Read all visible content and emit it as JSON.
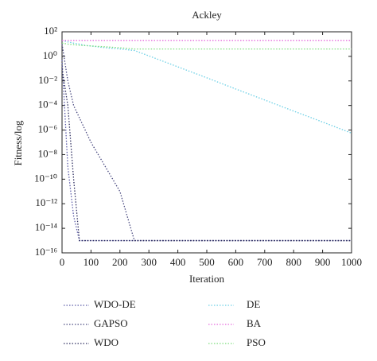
{
  "chart_data": {
    "type": "line",
    "title": "Ackley",
    "xlabel": "Iteration",
    "ylabel": "Fitness/log",
    "log_y": true,
    "xlim": [
      0,
      1000
    ],
    "xticks": [
      0,
      100,
      200,
      300,
      400,
      500,
      600,
      700,
      800,
      900,
      1000
    ],
    "ylim": [
      1e-16,
      100
    ],
    "yticks": [
      {
        "value": 100,
        "label": "10²"
      },
      {
        "value": 1,
        "label": "10⁰"
      },
      {
        "value": 0.01,
        "label": "10⁻²"
      },
      {
        "value": 0.0001,
        "label": "10⁻⁴"
      },
      {
        "value": 1e-06,
        "label": "10⁻⁶"
      },
      {
        "value": 1e-08,
        "label": "10⁻⁸"
      },
      {
        "value": 1e-10,
        "label": "10⁻¹⁰"
      },
      {
        "value": 1e-12,
        "label": "10⁻¹²"
      },
      {
        "value": 1e-14,
        "label": "10⁻¹⁴"
      },
      {
        "value": 1e-16,
        "label": "10⁻¹⁶"
      }
    ],
    "x": [
      0,
      20,
      40,
      60,
      80,
      100,
      150,
      200,
      250,
      300,
      400,
      500,
      600,
      700,
      800,
      900,
      1000
    ],
    "series": [
      {
        "name": "WDO-DE",
        "color": "#5c5ca8",
        "values": [
          0.5,
          1e-09,
          1e-13,
          1e-15,
          1e-15,
          1e-15,
          1e-15,
          1e-15,
          1e-15,
          1e-15,
          1e-15,
          1e-15,
          1e-15,
          1e-15,
          1e-15,
          1e-15,
          1e-15
        ]
      },
      {
        "name": "GAPSO",
        "color": "#4a4a80",
        "values": [
          10,
          0.01,
          0.0001,
          1e-05,
          1e-06,
          1e-07,
          1e-09,
          1e-11,
          1e-15,
          1e-15,
          1e-15,
          1e-15,
          1e-15,
          1e-15,
          1e-15,
          1e-15,
          1e-15
        ]
      },
      {
        "name": "WDO",
        "color": "#2e2e60",
        "values": [
          0.1,
          0.0001,
          1e-10,
          1e-15,
          1e-15,
          1e-15,
          1e-15,
          1e-15,
          1e-15,
          1e-15,
          1e-15,
          1e-15,
          1e-15,
          1e-15,
          1e-15,
          1e-15,
          1e-15
        ]
      },
      {
        "name": "DE",
        "color": "#6cd0e6",
        "values": [
          20,
          15,
          12,
          10,
          8,
          7,
          5,
          4,
          3,
          1.1,
          0.14,
          0.018,
          0.0022,
          0.00028,
          3.5e-05,
          4.5e-06,
          5.6e-07
        ]
      },
      {
        "name": "BA",
        "color": "#e66cde",
        "values": [
          20,
          20,
          20,
          20,
          20,
          20,
          20,
          20,
          20,
          20,
          20,
          20,
          20,
          20,
          20,
          20,
          20
        ]
      },
      {
        "name": "PSO",
        "color": "#7ede7e",
        "values": [
          12,
          10,
          9,
          8,
          7.5,
          7,
          6,
          5,
          4,
          4,
          4,
          4,
          4,
          4,
          4,
          4,
          4
        ]
      }
    ]
  }
}
